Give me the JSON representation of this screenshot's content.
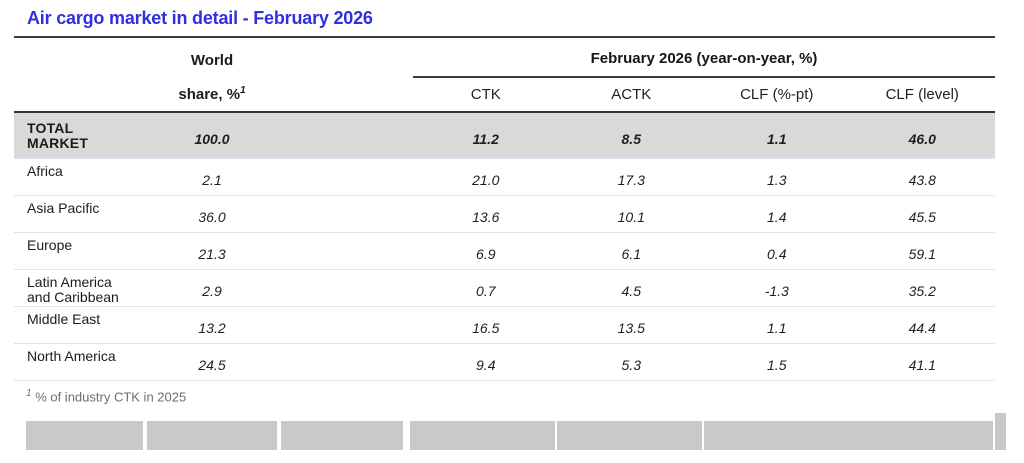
{
  "title": "Air cargo market in detail - February 2026",
  "table": {
    "world_share_header_line1": "World",
    "world_share_header_line2": "share, %",
    "world_share_footnote_marker": "1",
    "period_group_header": "February 2026 (year-on-year, %)",
    "metric_headers": [
      "CTK",
      "ACTK",
      "CLF (%-pt)",
      "CLF (level)"
    ],
    "total_row": {
      "label": "TOTAL MARKET",
      "world_share": "100.0",
      "values": [
        "11.2",
        "8.5",
        "1.1",
        "46.0"
      ]
    },
    "rows": [
      {
        "label": "Africa",
        "world_share": "2.1",
        "values": [
          "21.0",
          "17.3",
          "1.3",
          "43.8"
        ]
      },
      {
        "label": "Asia Pacific",
        "world_share": "36.0",
        "values": [
          "13.6",
          "10.1",
          "1.4",
          "45.5"
        ]
      },
      {
        "label": "Europe",
        "world_share": "21.3",
        "values": [
          "6.9",
          "6.1",
          "0.4",
          "59.1"
        ]
      },
      {
        "label": "Latin America and Caribbean",
        "world_share": "2.9",
        "values": [
          "0.7",
          "4.5",
          "-1.3",
          "35.2"
        ]
      },
      {
        "label": "Middle East",
        "world_share": "13.2",
        "values": [
          "16.5",
          "13.5",
          "1.1",
          "44.4"
        ]
      },
      {
        "label": "North America",
        "world_share": "24.5",
        "values": [
          "9.4",
          "5.3",
          "1.5",
          "41.1"
        ]
      }
    ]
  },
  "footnote": {
    "marker": "1",
    "text": "% of industry CTK in 2025"
  },
  "colors": {
    "title_blue": "#2f2fe3",
    "total_row_bg": "#d9d9d9",
    "row_divider": "#dbe4f1",
    "dark_rule": "#3c3c3c",
    "footnote_gray": "#6e6e6e",
    "bottom_block_gray": "#c9c9c9"
  }
}
